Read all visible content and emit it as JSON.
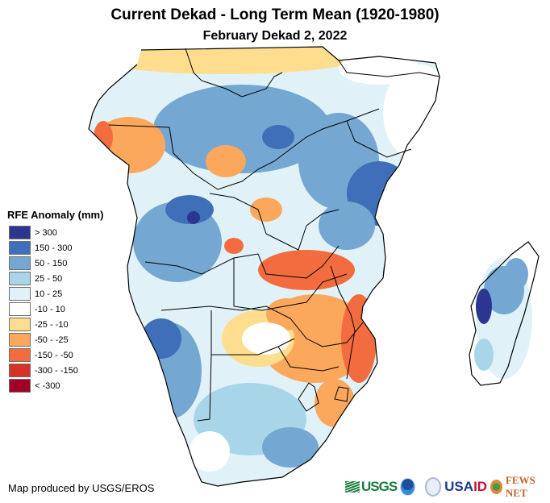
{
  "header": {
    "title": "Current Dekad - Long Term Mean (1920-1980)",
    "subtitle": "February Dekad 2, 2022"
  },
  "legend": {
    "title": "RFE Anomaly (mm)",
    "items": [
      {
        "label": "> 300",
        "color": "#2c3590"
      },
      {
        "label": "150 - 300",
        "color": "#3f6fb8"
      },
      {
        "label": "50 - 150",
        "color": "#74a8d2"
      },
      {
        "label": "25 - 50",
        "color": "#a8d6e8"
      },
      {
        "label": "10 - 25",
        "color": "#e0f2f8"
      },
      {
        "label": "-10 - 10",
        "color": "#ffffff"
      },
      {
        "label": "-25 - -10",
        "color": "#fede8e"
      },
      {
        "label": "-50 - -25",
        "color": "#fca85c"
      },
      {
        "label": "-150 - -50",
        "color": "#f36c40"
      },
      {
        "label": "-300 - -150",
        "color": "#d73228"
      },
      {
        "label": "< -300",
        "color": "#a20026"
      }
    ]
  },
  "footer": {
    "credit": "Map produced by USGS/EROS",
    "logos": {
      "usgs": "USGS",
      "usaid_a": "USA",
      "usaid_b": "ID",
      "fews": "FEWS NET"
    }
  },
  "map": {
    "region": "Sub-Saharan Africa (Central & Southern)",
    "regions_summary": [
      {
        "area": "Sahel band / northern Central Africa",
        "anomaly_class": "-25 - -10"
      },
      {
        "area": "Congo Basin",
        "anomaly_class": "50 - 150"
      },
      {
        "area": "Zambia / Zimbabwe / Mozambique",
        "anomaly_class": "-50 - -25"
      },
      {
        "area": "Central Mozambique coast",
        "anomaly_class": "-150 - -50"
      },
      {
        "area": "Tanzania",
        "anomaly_class": "150 - 300"
      },
      {
        "area": "Namibia / Angola",
        "anomaly_class": "50 - 150"
      },
      {
        "area": "South Africa",
        "anomaly_class": "25 - 50"
      },
      {
        "area": "Western Madagascar",
        "anomaly_class": "> 300"
      },
      {
        "area": "Somalia / Eastern Kenya",
        "anomaly_class": "-10 - 10"
      }
    ]
  }
}
